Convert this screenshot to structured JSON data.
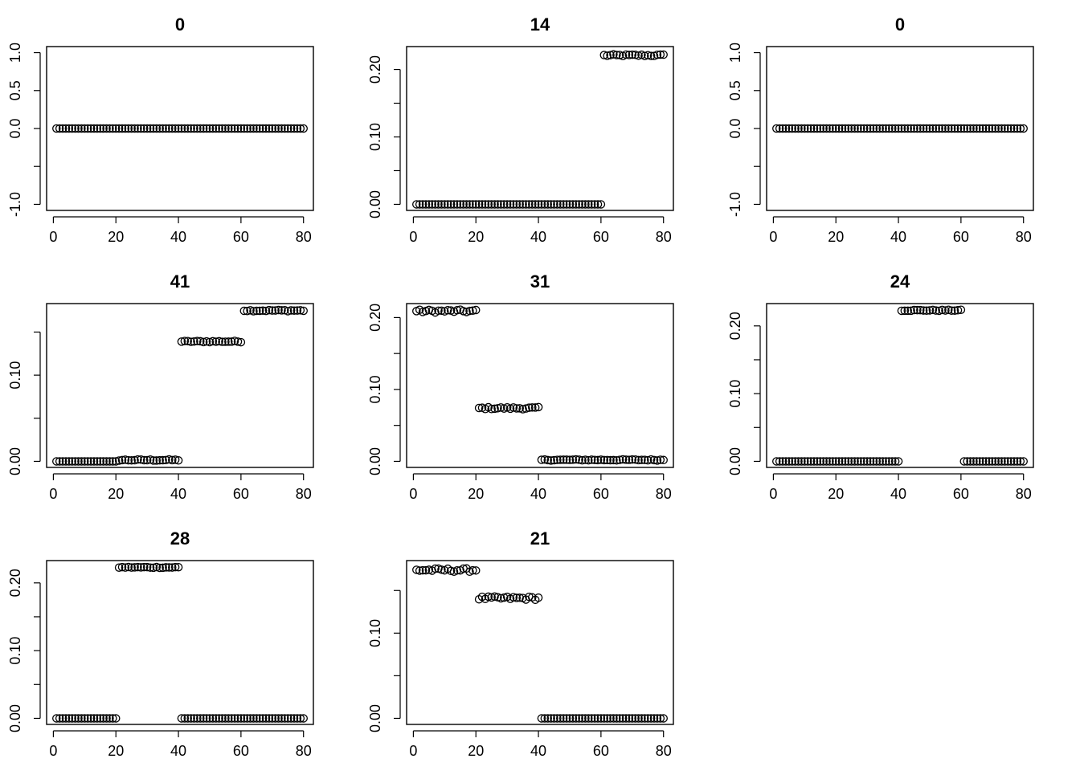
{
  "chart_data": [
    {
      "type": "scatter",
      "title": "0",
      "xlim": [
        1,
        80
      ],
      "ylim": [
        -1,
        1
      ],
      "xticks": [
        0,
        20,
        40,
        60,
        80
      ],
      "yticks": [
        -1.0,
        -0.5,
        0.0,
        0.5,
        1.0
      ],
      "ytick_labels": [
        "-1.0",
        "",
        "0.0",
        "0.5",
        "1.0"
      ],
      "segments": [
        {
          "from": 1,
          "to": 80,
          "value": 0.0,
          "jitter": 0
        }
      ]
    },
    {
      "type": "scatter",
      "title": "14",
      "xlim": [
        1,
        80
      ],
      "ylim": [
        0,
        0.225
      ],
      "xticks": [
        0,
        20,
        40,
        60,
        80
      ],
      "yticks": [
        0.0,
        0.05,
        0.1,
        0.15,
        0.2
      ],
      "ytick_labels": [
        "0.00",
        "",
        "0.10",
        "",
        "0.20"
      ],
      "segments": [
        {
          "from": 1,
          "to": 60,
          "value": 0.0,
          "jitter": 0
        },
        {
          "from": 61,
          "to": 80,
          "value": 0.221,
          "jitter": 0.0015
        }
      ]
    },
    {
      "type": "scatter",
      "title": "0",
      "xlim": [
        1,
        80
      ],
      "ylim": [
        -1,
        1
      ],
      "xticks": [
        0,
        20,
        40,
        60,
        80
      ],
      "yticks": [
        -1.0,
        -0.5,
        0.0,
        0.5,
        1.0
      ],
      "ytick_labels": [
        "-1.0",
        "",
        "0.0",
        "0.5",
        "1.0"
      ],
      "segments": [
        {
          "from": 1,
          "to": 80,
          "value": 0.0,
          "jitter": 0
        }
      ]
    },
    {
      "type": "scatter",
      "title": "41",
      "xlim": [
        1,
        80
      ],
      "ylim": [
        0,
        0.176
      ],
      "xticks": [
        0,
        20,
        40,
        60,
        80
      ],
      "yticks": [
        0.0,
        0.05,
        0.1,
        0.15
      ],
      "ytick_labels": [
        "0.00",
        "",
        "0.10",
        ""
      ],
      "segments": [
        {
          "from": 1,
          "to": 20,
          "value": 0.0,
          "jitter": 0
        },
        {
          "from": 21,
          "to": 40,
          "value": 0.0015,
          "jitter": 0.0008
        },
        {
          "from": 41,
          "to": 60,
          "value": 0.139,
          "jitter": 0.0008
        },
        {
          "from": 61,
          "to": 80,
          "value": 0.175,
          "jitter": 0.0008
        }
      ]
    },
    {
      "type": "scatter",
      "title": "31",
      "xlim": [
        1,
        80
      ],
      "ylim": [
        0,
        0.211
      ],
      "xticks": [
        0,
        20,
        40,
        60,
        80
      ],
      "yticks": [
        0.0,
        0.05,
        0.1,
        0.15,
        0.2
      ],
      "ytick_labels": [
        "0.00",
        "",
        "0.10",
        "",
        "0.20"
      ],
      "segments": [
        {
          "from": 1,
          "to": 20,
          "value": 0.209,
          "jitter": 0.002
        },
        {
          "from": 21,
          "to": 40,
          "value": 0.074,
          "jitter": 0.0015
        },
        {
          "from": 41,
          "to": 80,
          "value": 0.002,
          "jitter": 0.0008
        }
      ]
    },
    {
      "type": "scatter",
      "title": "24",
      "xlim": [
        1,
        80
      ],
      "ylim": [
        0,
        0.224
      ],
      "xticks": [
        0,
        20,
        40,
        60,
        80
      ],
      "yticks": [
        0.0,
        0.05,
        0.1,
        0.15,
        0.2
      ],
      "ytick_labels": [
        "0.00",
        "",
        "0.10",
        "",
        "0.20"
      ],
      "segments": [
        {
          "from": 1,
          "to": 40,
          "value": 0.0,
          "jitter": 0
        },
        {
          "from": 41,
          "to": 60,
          "value": 0.223,
          "jitter": 0.0008
        },
        {
          "from": 61,
          "to": 80,
          "value": 0.0,
          "jitter": 0
        }
      ]
    },
    {
      "type": "scatter",
      "title": "28",
      "xlim": [
        1,
        80
      ],
      "ylim": [
        0,
        0.224
      ],
      "xticks": [
        0,
        20,
        40,
        60,
        80
      ],
      "yticks": [
        0.0,
        0.05,
        0.1,
        0.15,
        0.2
      ],
      "ytick_labels": [
        "0.00",
        "",
        "0.10",
        "",
        "0.20"
      ],
      "segments": [
        {
          "from": 1,
          "to": 20,
          "value": 0.0,
          "jitter": 0
        },
        {
          "from": 21,
          "to": 40,
          "value": 0.223,
          "jitter": 0.0008
        },
        {
          "from": 41,
          "to": 80,
          "value": 0.0,
          "jitter": 0
        }
      ]
    },
    {
      "type": "scatter",
      "title": "21",
      "xlim": [
        1,
        80
      ],
      "ylim": [
        0,
        0.178
      ],
      "xticks": [
        0,
        20,
        40,
        60,
        80
      ],
      "yticks": [
        0.0,
        0.05,
        0.1,
        0.15
      ],
      "ytick_labels": [
        "0.00",
        "",
        "0.10",
        ""
      ],
      "segments": [
        {
          "from": 1,
          "to": 20,
          "value": 0.174,
          "jitter": 0.002
        },
        {
          "from": 21,
          "to": 40,
          "value": 0.141,
          "jitter": 0.002
        },
        {
          "from": 41,
          "to": 80,
          "value": 0.0,
          "jitter": 0
        }
      ]
    }
  ]
}
